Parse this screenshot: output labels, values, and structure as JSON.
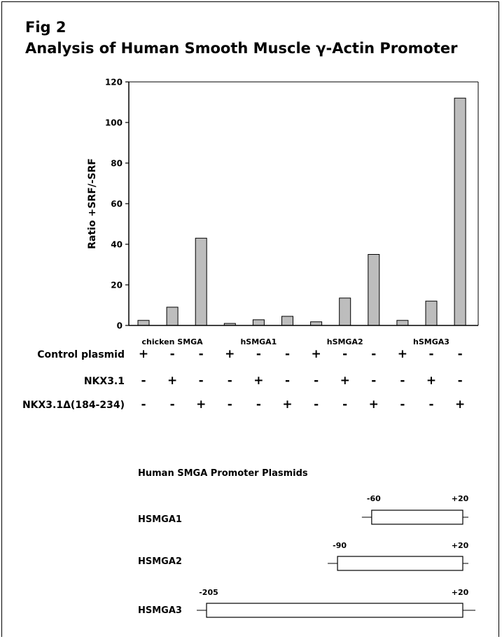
{
  "figure": {
    "number": "Fig 2",
    "title": "Analysis of Human Smooth Muscle γ-Actin Promoter"
  },
  "colors": {
    "bar_fill": "#bdbdbd",
    "bar_stroke": "#000000",
    "axis": "#000000"
  },
  "chart_data": {
    "type": "bar",
    "ylabel": "Ratio +SRF/-SRF",
    "ylim": [
      0,
      120
    ],
    "yticks": [
      0,
      20,
      40,
      60,
      80,
      100,
      120
    ],
    "grid": false,
    "groups": [
      {
        "label": "chicken SMGA",
        "values": [
          2.5,
          9,
          43
        ]
      },
      {
        "label": "hSMGA1",
        "values": [
          1,
          2.8,
          4.5
        ]
      },
      {
        "label": "hSMGA2",
        "values": [
          1.8,
          13.5,
          35
        ]
      },
      {
        "label": "hSMGA3",
        "values": [
          2.5,
          12,
          112
        ]
      }
    ],
    "condition_rows": [
      {
        "label": "Control plasmid",
        "marks": [
          "+",
          "-",
          "-",
          "+",
          "-",
          "-",
          "+",
          "-",
          "-",
          "+",
          "-",
          "-"
        ]
      },
      {
        "label": "NKX3.1",
        "marks": [
          "-",
          "+",
          "-",
          "-",
          "+",
          "-",
          "-",
          "+",
          "-",
          "-",
          "+",
          "-"
        ]
      },
      {
        "label": "NKX3.1Δ(184-234)",
        "marks": [
          "-",
          "-",
          "+",
          "-",
          "-",
          "+",
          "-",
          "-",
          "+",
          "-",
          "-",
          "+"
        ]
      }
    ]
  },
  "diagram": {
    "title": "Human SMGA Promoter Plasmids",
    "constructs": [
      {
        "name": "HSMGA1",
        "start_label": "-60",
        "end_label": "+20",
        "start": -60,
        "end": 20
      },
      {
        "name": "HSMGA2",
        "start_label": "-90",
        "end_label": "+20",
        "start": -90,
        "end": 20
      },
      {
        "name": "HSMGA3",
        "start_label": "-205",
        "end_label": "+20",
        "start": -205,
        "end": 20
      }
    ]
  }
}
